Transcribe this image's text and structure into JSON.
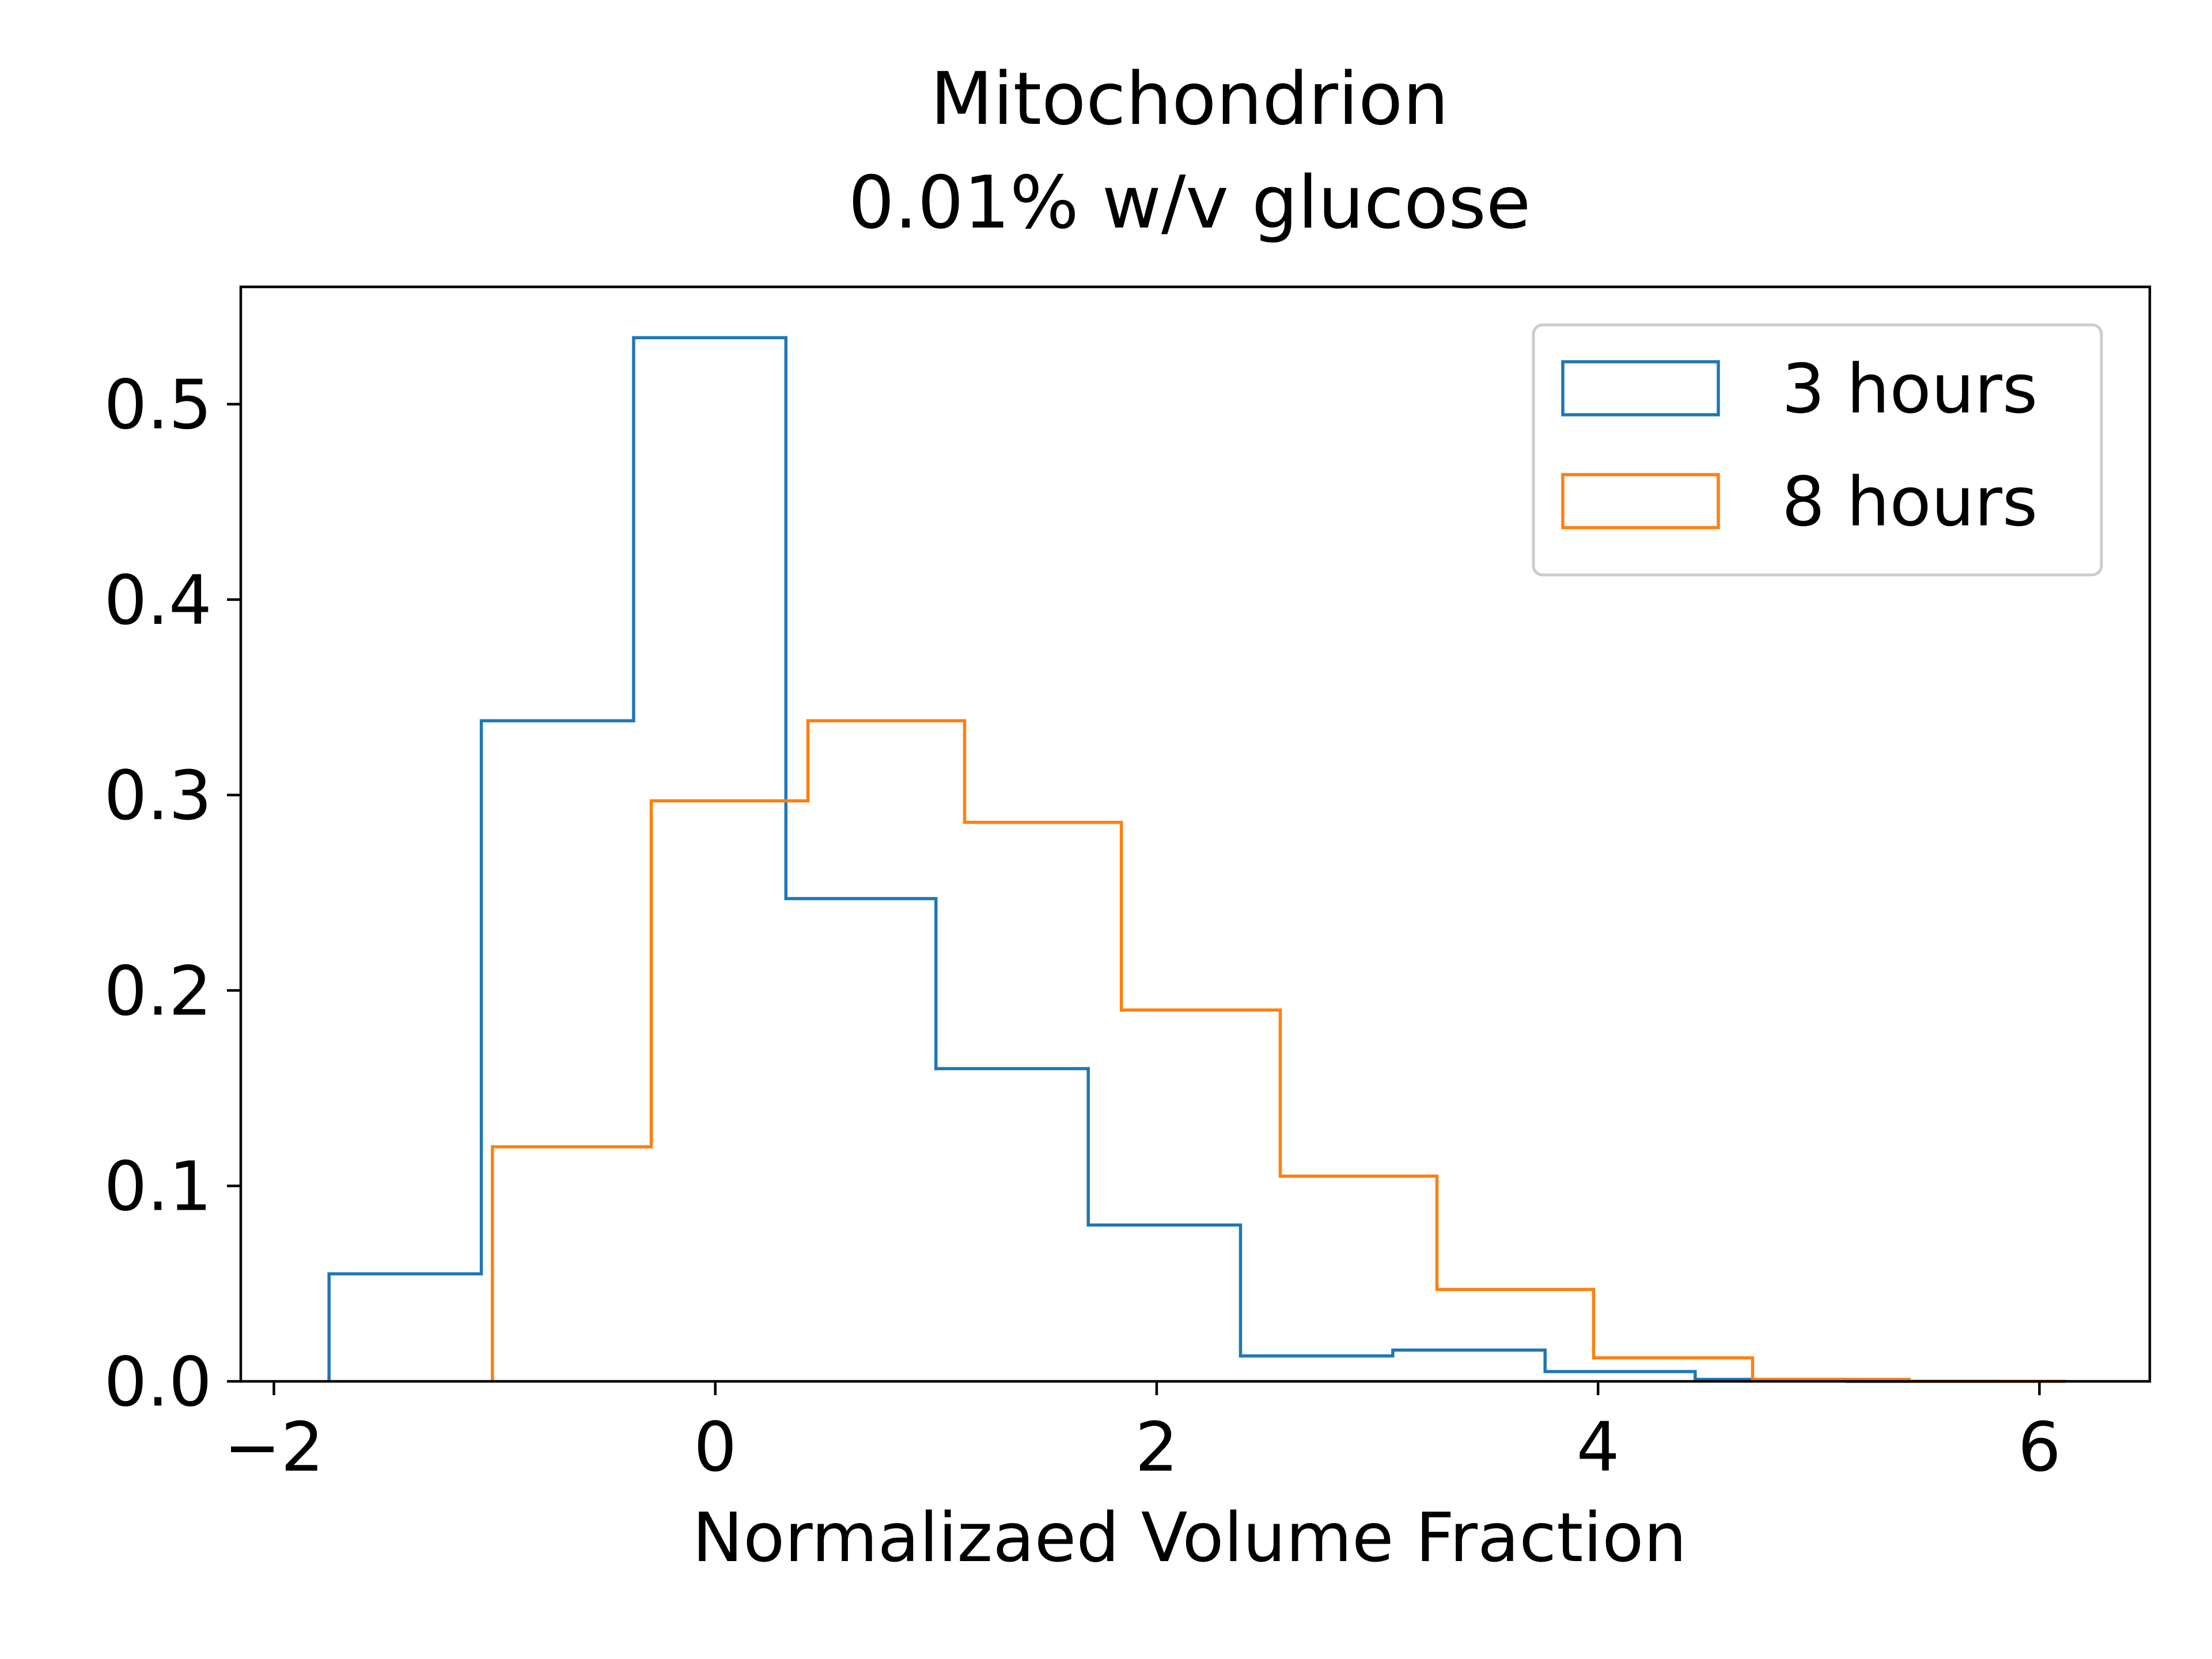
{
  "chart_data": {
    "type": "histogram",
    "title": "Mitochondrion\n0.01% w/v glucose",
    "title_lines": [
      "Mitochondrion",
      "0.01% w/v glucose"
    ],
    "xlabel": "Normalizaed Volume Fraction",
    "ylabel": "",
    "xlim": [
      -2.15,
      6.5
    ],
    "ylim": [
      0,
      0.56
    ],
    "xticks": [
      -2,
      0,
      2,
      4,
      6
    ],
    "xtick_labels": [
      "−2",
      "0",
      "2",
      "4",
      "6"
    ],
    "yticks": [
      0.0,
      0.1,
      0.2,
      0.3,
      0.4,
      0.5
    ],
    "ytick_labels": [
      "0.0",
      "0.1",
      "0.2",
      "0.3",
      "0.4",
      "0.5"
    ],
    "grid": false,
    "legend": {
      "placement": "upper right",
      "entries": [
        "3 hours",
        "8 hours"
      ]
    },
    "series": [
      {
        "name": "3 hours",
        "color": "#1f77b4",
        "histtype": "step",
        "bin_edges": [
          -1.75,
          -1.06,
          -0.37,
          0.32,
          1.0,
          1.69,
          2.38,
          3.07,
          3.76,
          4.44,
          5.13,
          5.82
        ],
        "values": [
          0.055,
          0.338,
          0.534,
          0.247,
          0.16,
          0.08,
          0.013,
          0.016,
          0.005,
          0.001,
          0.0
        ]
      },
      {
        "name": "8 hours",
        "color": "#ff7f0e",
        "histtype": "step",
        "bin_edges": [
          -1.01,
          -0.29,
          0.42,
          1.13,
          1.84,
          2.56,
          3.27,
          3.98,
          4.7,
          5.41,
          6.12
        ],
        "values": [
          0.12,
          0.297,
          0.338,
          0.286,
          0.19,
          0.105,
          0.047,
          0.012,
          0.001,
          0.0
        ]
      }
    ]
  }
}
